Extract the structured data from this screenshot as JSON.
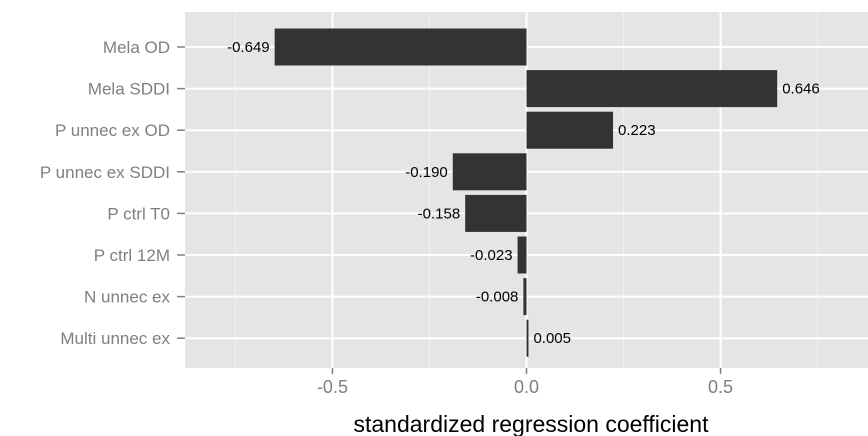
{
  "chart_data": {
    "type": "bar",
    "orientation": "horizontal",
    "categories": [
      "Mela OD",
      "Mela SDDI",
      "P unnec ex OD",
      "P unnec ex SDDI",
      "P ctrl T0",
      "P ctrl 12M",
      "N unnec ex",
      "Multi unnec ex"
    ],
    "values": [
      -0.649,
      0.646,
      0.223,
      -0.19,
      -0.158,
      -0.023,
      -0.008,
      0.005
    ],
    "data_labels": [
      "-0.649",
      "0.646",
      "0.223",
      "-0.190",
      "-0.158",
      "-0.023",
      "-0.008",
      "0.005"
    ],
    "xlabel": "standardized regression coefficient",
    "ylabel": "",
    "title": "",
    "xlim": [
      -0.88,
      0.88
    ],
    "xticks": [
      -0.5,
      0.0,
      0.5
    ],
    "xtick_labels": [
      "-0.5",
      "0.0",
      "0.5"
    ],
    "grid": true,
    "colors": {
      "bar": "#333333",
      "panel": "#e5e5e5",
      "grid_major": "#ffffff",
      "grid_minor": "#f2f2f2",
      "tick_text": "#7f7f7f"
    }
  }
}
